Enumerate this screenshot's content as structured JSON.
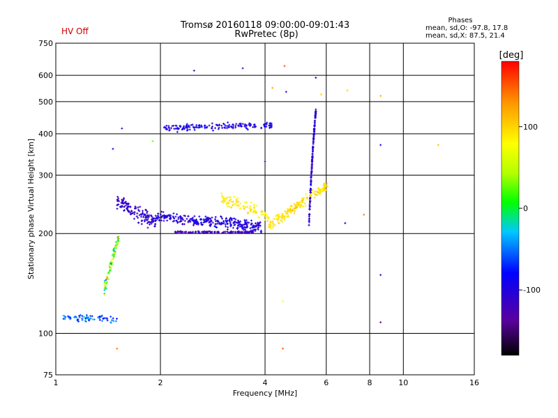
{
  "header": {
    "status_label": "HV Off",
    "title_line1": "Tromsø 20160118 09:00:00-09:01:43",
    "title_line2": "RwPretec (8p)",
    "stats_title": "Phases",
    "stats_line1": "mean, sd,O: -97.8, 17.8",
    "stats_line2": "mean, sd,X:  87.5, 21.4"
  },
  "colors": {
    "red": "#ff0000",
    "blue": "#0000ff"
  },
  "chart_data": {
    "type": "scatter",
    "title": "Tromsø 20160118 09:00:00-09:01:43",
    "subtitle": "RwPretec (8p)",
    "xlabel": "Frequency [MHz]",
    "ylabel": "Stationary phase Virtual Height [km]",
    "xscale": "log",
    "yscale": "log",
    "xlim": [
      1,
      16
    ],
    "ylim": [
      75,
      750
    ],
    "x_ticks": [
      1,
      2,
      4,
      6,
      8,
      10,
      16
    ],
    "y_ticks": [
      75,
      100,
      200,
      300,
      400,
      500,
      600,
      750
    ],
    "x_gridlines": [
      2,
      4,
      6,
      8,
      10
    ],
    "y_gridlines": [
      100,
      200,
      300,
      400,
      500,
      600
    ],
    "grid": true,
    "colorbar": {
      "label": "[deg]",
      "min": -180,
      "max": 180,
      "ticks": [
        -100,
        0,
        100
      ]
    },
    "traces": [
      {
        "x_start": 1.05,
        "x_end": 1.5,
        "h_start": 112,
        "h_end": 110,
        "h_amp": 4,
        "phase_center": -60,
        "phase_spread": 50,
        "count": 70
      },
      {
        "x_start": 1.38,
        "x_end": 1.52,
        "h_start": 135,
        "h_end": 195,
        "h_amp": 10,
        "phase_center": 30,
        "phase_spread": 110,
        "count": 80
      },
      {
        "x_start": 1.5,
        "x_end": 1.95,
        "h_start": 250,
        "h_end": 215,
        "h_amp": 18,
        "phase_center": -110,
        "phase_spread": 20,
        "count": 140
      },
      {
        "x_start": 1.9,
        "x_end": 3.9,
        "h_start": 225,
        "h_end": 210,
        "h_amp": 12,
        "phase_center": -100,
        "phase_spread": 35,
        "count": 300
      },
      {
        "x_start": 2.2,
        "x_end": 3.7,
        "h_start": 202,
        "h_end": 202,
        "h_amp": 2,
        "phase_center": -120,
        "phase_spread": 20,
        "count": 120
      },
      {
        "x_start": 3.0,
        "x_end": 4.1,
        "h_start": 255,
        "h_end": 225,
        "h_amp": 15,
        "phase_center": 90,
        "phase_spread": 30,
        "count": 90
      },
      {
        "x_start": 4.1,
        "x_end": 6.1,
        "h_start": 210,
        "h_end": 280,
        "h_amp": 12,
        "phase_center": 95,
        "phase_spread": 20,
        "count": 170
      },
      {
        "x_start": 5.35,
        "x_end": 5.6,
        "h_start": 210,
        "h_end": 470,
        "h_amp": 12,
        "phase_center": -105,
        "phase_spread": 20,
        "count": 170
      },
      {
        "x_start": 2.05,
        "x_end": 4.2,
        "h_start": 415,
        "h_end": 425,
        "h_amp": 14,
        "phase_center": -95,
        "phase_spread": 25,
        "count": 160
      }
    ],
    "outliers": [
      {
        "x": 1.5,
        "h": 90,
        "phase": 140
      },
      {
        "x": 4.5,
        "h": 90,
        "phase": 150
      },
      {
        "x": 4.5,
        "h": 125,
        "phase": 80
      },
      {
        "x": 8.6,
        "h": 150,
        "phase": -110
      },
      {
        "x": 8.6,
        "h": 108,
        "phase": -140
      },
      {
        "x": 8.6,
        "h": 370,
        "phase": -90
      },
      {
        "x": 8.6,
        "h": 520,
        "phase": 120
      },
      {
        "x": 12.6,
        "h": 370,
        "phase": 110
      },
      {
        "x": 7.7,
        "h": 228,
        "phase": 140
      },
      {
        "x": 6.8,
        "h": 215,
        "phase": -80
      },
      {
        "x": 2.5,
        "h": 620,
        "phase": -120
      },
      {
        "x": 3.45,
        "h": 630,
        "phase": -120
      },
      {
        "x": 4.55,
        "h": 640,
        "phase": 150
      },
      {
        "x": 4.2,
        "h": 550,
        "phase": 120
      },
      {
        "x": 4.6,
        "h": 535,
        "phase": -100
      },
      {
        "x": 5.8,
        "h": 525,
        "phase": 100
      },
      {
        "x": 6.9,
        "h": 540,
        "phase": 100
      },
      {
        "x": 1.46,
        "h": 360,
        "phase": -100
      },
      {
        "x": 1.55,
        "h": 415,
        "phase": -110
      },
      {
        "x": 1.9,
        "h": 380,
        "phase": 30
      },
      {
        "x": 5.6,
        "h": 590,
        "phase": -90
      },
      {
        "x": 4.0,
        "h": 330,
        "phase": -100
      }
    ]
  }
}
